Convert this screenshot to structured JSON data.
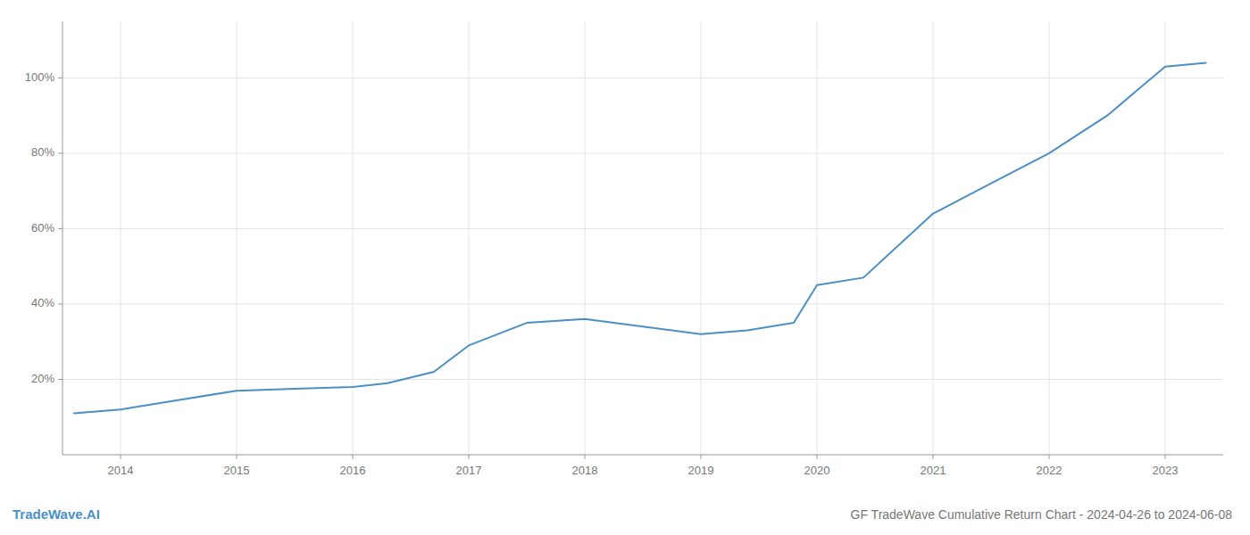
{
  "chart_data": {
    "type": "line",
    "title": "GF TradeWave Cumulative Return Chart - 2024-04-26 to 2024-06-08",
    "annotations": [
      "TradeWave.AI"
    ],
    "color": "#4a90c4",
    "x": [
      2013.6,
      2014.0,
      2014.4,
      2015.0,
      2015.5,
      2016.0,
      2016.3,
      2016.7,
      2017.0,
      2017.5,
      2018.0,
      2018.5,
      2019.0,
      2019.4,
      2019.8,
      2020.0,
      2020.4,
      2021.0,
      2021.5,
      2022.0,
      2022.5,
      2023.0,
      2023.35
    ],
    "values": [
      11,
      12,
      14,
      17,
      17.5,
      18,
      19,
      22,
      29,
      35,
      36,
      34,
      32,
      33,
      35,
      45,
      47,
      64,
      72,
      80,
      90,
      103,
      104
    ],
    "xlim": [
      2013.5,
      2023.5
    ],
    "ylim": [
      0,
      115
    ],
    "xticks": [
      2014,
      2015,
      2016,
      2017,
      2018,
      2019,
      2020,
      2021,
      2022,
      2023
    ],
    "yticks": [
      {
        "value": 20,
        "label": "20%"
      },
      {
        "value": 40,
        "label": "40%"
      },
      {
        "value": 60,
        "label": "60%"
      },
      {
        "value": 80,
        "label": "80%"
      },
      {
        "value": 100,
        "label": "100%"
      }
    ],
    "grid": true
  }
}
